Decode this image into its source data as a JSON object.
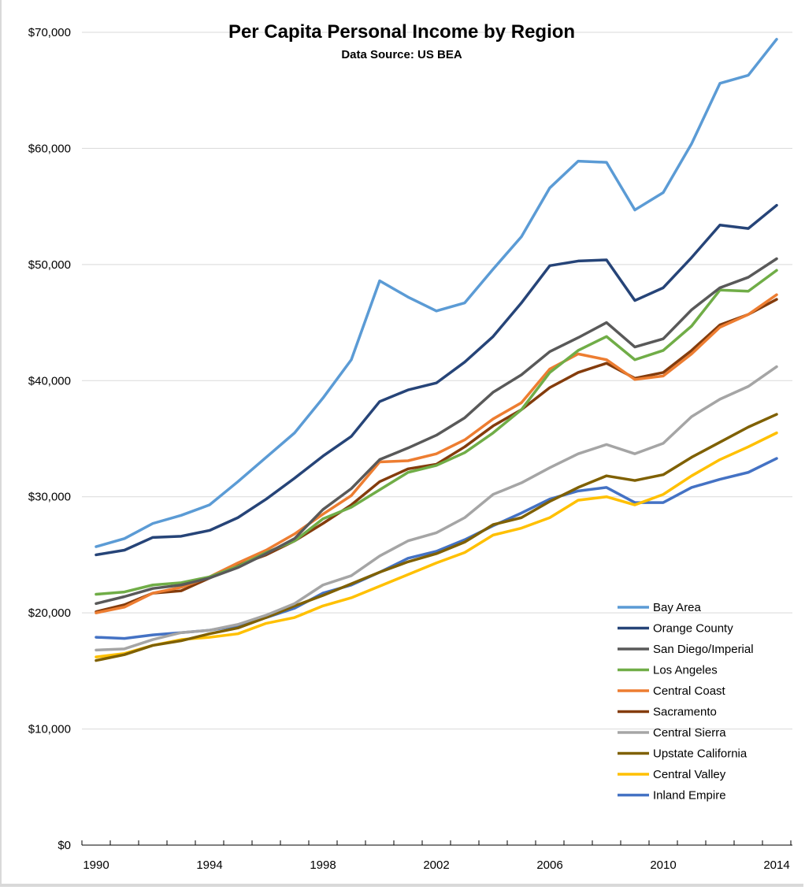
{
  "chart_data": {
    "type": "line",
    "title": "Per Capita Personal Income by Region",
    "subtitle": "Data Source:  US BEA",
    "xlabel": "",
    "ylabel": "",
    "x": [
      1990,
      1991,
      1992,
      1993,
      1994,
      1995,
      1996,
      1997,
      1998,
      1999,
      2000,
      2001,
      2002,
      2003,
      2004,
      2005,
      2006,
      2007,
      2008,
      2009,
      2010,
      2011,
      2012,
      2013,
      2014
    ],
    "x_tick_labels": [
      "1990",
      "1994",
      "1998",
      "2002",
      "2006",
      "2010",
      "2014"
    ],
    "x_tick_values": [
      1990,
      1994,
      1998,
      2002,
      2006,
      2010,
      2014
    ],
    "ylim": [
      0,
      70000
    ],
    "y_tick_values": [
      0,
      10000,
      20000,
      30000,
      40000,
      50000,
      60000,
      70000
    ],
    "y_tick_labels": [
      "$0",
      "$10,000",
      "$20,000",
      "$30,000",
      "$40,000",
      "$50,000",
      "$60,000",
      "$70,000"
    ],
    "grid": true,
    "legend_position": "bottom-right",
    "series": [
      {
        "name": "Bay Area",
        "color": "#5B9BD5",
        "values": [
          25700,
          26400,
          27700,
          28400,
          29300,
          31300,
          33400,
          35500,
          38500,
          41800,
          48600,
          47200,
          46000,
          46700,
          49600,
          52400,
          56600,
          58900,
          58800,
          54700,
          56200,
          60400,
          65600,
          66300,
          69400
        ]
      },
      {
        "name": "Orange County",
        "color": "#264478",
        "values": [
          25000,
          25400,
          26500,
          26600,
          27100,
          28200,
          29800,
          31600,
          33500,
          35200,
          38200,
          39200,
          39800,
          41600,
          43800,
          46700,
          49900,
          50300,
          50400,
          46900,
          48000,
          50600,
          53400,
          53100,
          55100
        ]
      },
      {
        "name": "San Diego/Imperial",
        "color": "#595959",
        "values": [
          20800,
          21400,
          22100,
          22400,
          23000,
          23900,
          25100,
          26400,
          28900,
          30700,
          33200,
          34200,
          35300,
          36800,
          39000,
          40500,
          42500,
          43700,
          45000,
          42900,
          43600,
          46100,
          48000,
          48900,
          50500
        ]
      },
      {
        "name": "Los Angeles",
        "color": "#70AD47",
        "values": [
          21600,
          21800,
          22400,
          22600,
          23100,
          24000,
          25200,
          26200,
          28100,
          29100,
          30600,
          32100,
          32700,
          33800,
          35500,
          37500,
          40700,
          42600,
          43800,
          41800,
          42600,
          44700,
          47800,
          47700,
          49500
        ]
      },
      {
        "name": "Central Coast",
        "color": "#ED7D31",
        "values": [
          20000,
          20500,
          21700,
          22200,
          23100,
          24300,
          25400,
          26800,
          28500,
          30100,
          33000,
          33100,
          33700,
          34900,
          36700,
          38100,
          41000,
          42300,
          41800,
          40100,
          40400,
          42300,
          44600,
          45700,
          47400
        ]
      },
      {
        "name": "Sacramento",
        "color": "#843C0C",
        "values": [
          20100,
          20700,
          21700,
          21900,
          23000,
          24100,
          25000,
          26200,
          27700,
          29300,
          31300,
          32400,
          32800,
          34300,
          36100,
          37500,
          39400,
          40700,
          41500,
          40200,
          40700,
          42600,
          44800,
          45700,
          47000
        ]
      },
      {
        "name": "Central Sierra",
        "color": "#A5A5A5",
        "values": [
          16800,
          16900,
          17700,
          18300,
          18500,
          19000,
          19800,
          20800,
          22400,
          23200,
          24900,
          26200,
          26900,
          28200,
          30200,
          31200,
          32500,
          33700,
          34500,
          33700,
          34600,
          36900,
          38400,
          39500,
          41200
        ]
      },
      {
        "name": "Upstate California",
        "color": "#7F6000",
        "values": [
          15900,
          16400,
          17200,
          17600,
          18200,
          18700,
          19600,
          20600,
          21500,
          22500,
          23500,
          24400,
          25100,
          26100,
          27600,
          28200,
          29600,
          30800,
          31800,
          31400,
          31900,
          33400,
          34700,
          36000,
          37100
        ]
      },
      {
        "name": "Central Valley",
        "color": "#FFC000",
        "values": [
          16200,
          16500,
          17200,
          17700,
          17900,
          18200,
          19100,
          19600,
          20600,
          21300,
          22300,
          23300,
          24300,
          25200,
          26700,
          27300,
          28200,
          29700,
          30000,
          29300,
          30200,
          31800,
          33200,
          34300,
          35500
        ]
      },
      {
        "name": "Inland Empire",
        "color": "#4472C4",
        "values": [
          17900,
          17800,
          18100,
          18300,
          18500,
          18900,
          19600,
          20400,
          21700,
          22400,
          23500,
          24700,
          25300,
          26300,
          27500,
          28600,
          29800,
          30500,
          30800,
          29500,
          29500,
          30800,
          31500,
          32100,
          33300
        ]
      }
    ]
  }
}
